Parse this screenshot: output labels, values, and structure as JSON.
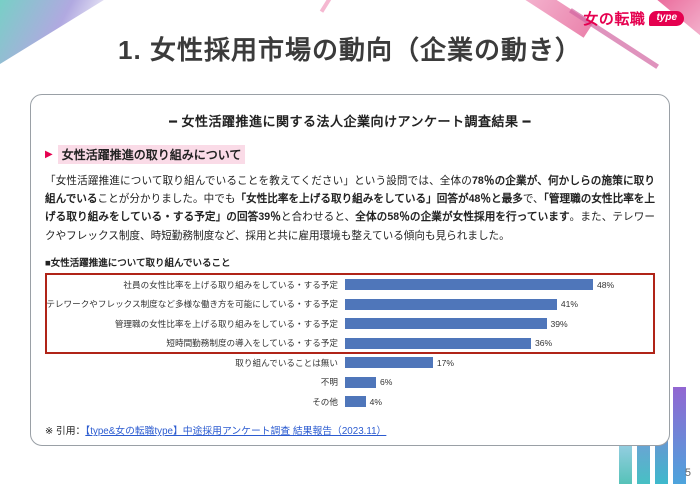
{
  "page": {
    "title": "1. 女性採用市場の動向（企業の動き）",
    "page_number": "5",
    "logo": {
      "brand": "女の転職",
      "badge": "type"
    }
  },
  "card": {
    "header": "━ 女性活躍推進に関する法人企業向けアンケート調査結果 ━",
    "section_marker": "▶",
    "section_heading": "女性活躍推進の取り組みについて",
    "paragraph_segments": [
      {
        "text": "「女性活躍推進について取り組んでいることを教えてください」という設問では、全体の",
        "bold": false
      },
      {
        "text": "78％の企業が、何かしらの施策に取り組んでいる",
        "bold": true
      },
      {
        "text": "ことが分かりました。中でも",
        "bold": false
      },
      {
        "text": "「女性比率を上げる取り組みをしている」回答が48％と最多",
        "bold": true
      },
      {
        "text": "で、",
        "bold": false
      },
      {
        "text": "「管理職の女性比率を上げる取り組みをしている・する予定」の回答39％",
        "bold": true
      },
      {
        "text": "と合わせると、",
        "bold": false
      },
      {
        "text": "全体の58％の企業が女性採用を行っています",
        "bold": true
      },
      {
        "text": "。また、テレワークやフレックス制度、時短勤務制度など、採用と共に雇用環境も整えている傾向も見られました。",
        "bold": false
      }
    ],
    "chart_label": "■女性活躍推進について取り組んでいること",
    "citation_prefix": "※ 引用：",
    "citation_link": "【type&女の転職type】中途採用アンケート調査 結果報告（2023.11）"
  },
  "chart_data": {
    "type": "bar",
    "orientation": "horizontal",
    "title": "■女性活躍推進について取り組んでいること",
    "categories": [
      "社員の女性比率を上げる取り組みをしている・する予定",
      "テレワークやフレックス制度など多様な働き方を可能にしている・する予定",
      "管理職の女性比率を上げる取り組みをしている・する予定",
      "短時間勤務制度の導入をしている・する予定",
      "取り組んでいることは無い",
      "不明",
      "その他"
    ],
    "values": [
      48,
      41,
      39,
      36,
      17,
      6,
      4
    ],
    "value_suffix": "%",
    "xlim": [
      0,
      60
    ],
    "bar_color": "#4f76ba",
    "highlighted_rows": [
      0,
      1,
      2,
      3
    ],
    "highlight_border_color": "#b02418",
    "legend": false,
    "grid": false
  },
  "colors": {
    "brand_magenta": "#e5004f",
    "bar_blue": "#4f76ba",
    "highlight_red": "#b02418",
    "link_blue": "#2b5bd0",
    "heading_highlight_pink": "#fadbe7"
  }
}
